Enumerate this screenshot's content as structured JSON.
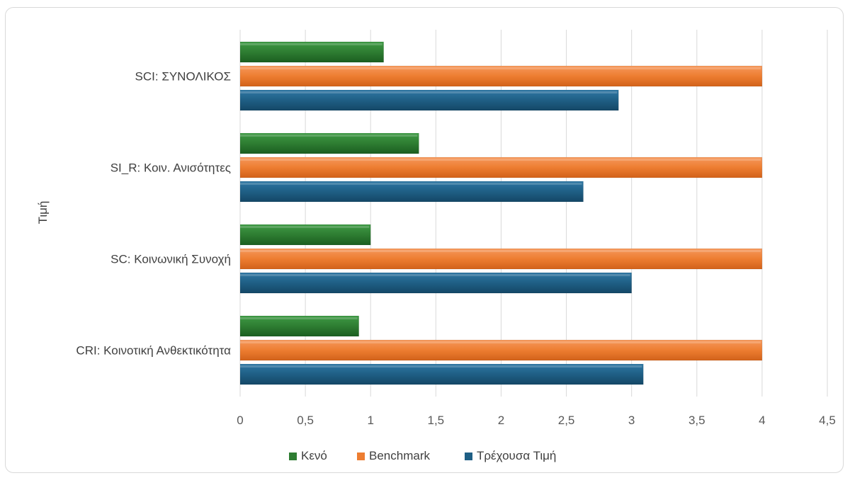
{
  "chart_data": {
    "type": "bar",
    "orientation": "horizontal",
    "title": "",
    "ylabel": "Τιμή",
    "xlabel": "",
    "categories": [
      "SCI: ΣΥΝΟΛΙΚΟΣ",
      "SI_R: Κοιν. Ανισότητες",
      "SC: Κοινωνική Συνοχή",
      "CRI: Κοινοτική Ανθεκτικότητα"
    ],
    "series": [
      {
        "name": "Κενό",
        "color": "#2e7d32",
        "values": [
          1.1,
          1.37,
          1.0,
          0.91
        ]
      },
      {
        "name": "Benchmark",
        "color": "#ed7d31",
        "values": [
          4,
          4,
          4,
          4
        ]
      },
      {
        "name": "Τρέχουσα Τιμή",
        "color": "#1f5f85",
        "values": [
          2.9,
          2.63,
          3.0,
          3.09
        ]
      }
    ],
    "xlim": [
      0,
      4.5
    ],
    "x_ticks": [
      "0",
      "0,5",
      "1",
      "1,5",
      "2",
      "2,5",
      "3",
      "3,5",
      "4",
      "4,5"
    ],
    "grid": true,
    "legend_position": "bottom"
  }
}
